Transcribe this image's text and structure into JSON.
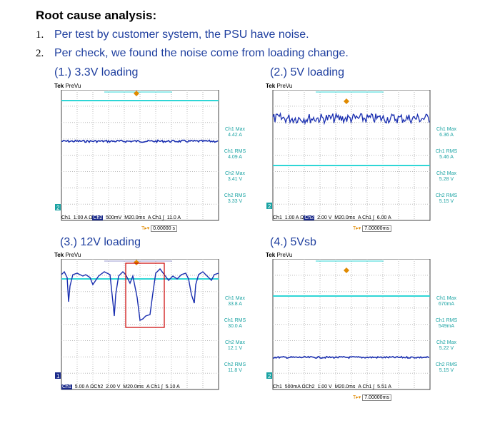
{
  "title": "Root cause analysis:",
  "items": [
    {
      "num": "1.",
      "text": "Per test by customer system, the PSU have noise."
    },
    {
      "num": "2.",
      "text": "Per check, we found the noise come from loading change."
    }
  ],
  "scopes": [
    {
      "label": "(1.)  3.3V loading",
      "header_brand": "Tek",
      "header_mode": "PreVu",
      "readouts": [
        {
          "name": "Ch1 Max",
          "value": "4.42 A"
        },
        {
          "name": "Ch1 RMS",
          "value": "4.09 A"
        },
        {
          "name": "Ch2 Max",
          "value": "3.41 V"
        },
        {
          "name": "Ch2 RMS",
          "value": "3.33 V"
        }
      ],
      "bottom": {
        "ch1": "Ch1",
        "ch1_scale": "1.00 A Ω",
        "ch2": "Ch2",
        "ch2_scale": "500mV",
        "time": "M20.0ms",
        "trig": "A  Ch1  ∫",
        "level": "11.0 A"
      },
      "trigger_time": "0.00000 s",
      "marker": "2"
    },
    {
      "label": "(2.) 5V loading",
      "header_brand": "Tek",
      "header_mode": "PreVu",
      "readouts": [
        {
          "name": "Ch1 Max",
          "value": "6.36 A"
        },
        {
          "name": "Ch1 RMS",
          "value": "5.46 A"
        },
        {
          "name": "Ch2 Max",
          "value": "5.28 V"
        },
        {
          "name": "Ch2 RMS",
          "value": "5.15 V"
        }
      ],
      "bottom": {
        "ch1": "Ch1",
        "ch1_scale": "1.00 A Ω",
        "ch2": "Ch2",
        "ch2_scale": "2.00 V",
        "time": "M20.0ms",
        "trig": "A  Ch1  ∫",
        "level": "6.00 A"
      },
      "trigger_time": "7.00000ms",
      "marker": "2"
    },
    {
      "label": "(3.) 12V loading",
      "header_brand": "Tek",
      "header_mode": "PreVu",
      "readouts": [
        {
          "name": "Ch1 Max",
          "value": "33.8 A"
        },
        {
          "name": "Ch1 RMS",
          "value": "30.0 A"
        },
        {
          "name": "Ch2 Max",
          "value": "12.1 V"
        },
        {
          "name": "Ch2 RMS",
          "value": "11.8 V"
        }
      ],
      "bottom": {
        "ch1": "Ch1",
        "ch1_scale": "5.00 A Ω",
        "ch2": "Ch2",
        "ch2_scale": "2.00 V",
        "time": "M20.0ms",
        "trig": "A  Ch1  ∫",
        "level": "5.10 A"
      },
      "marker": "1"
    },
    {
      "label": "(4.) 5Vsb",
      "header_brand": "Tek",
      "header_mode": "PreVu",
      "readouts": [
        {
          "name": "Ch1 Max",
          "value": "670mA"
        },
        {
          "name": "Ch1 RMS",
          "value": "549mA"
        },
        {
          "name": "Ch2 Max",
          "value": "5.22 V"
        },
        {
          "name": "Ch2 RMS",
          "value": "5.15 V"
        }
      ],
      "bottom": {
        "ch1": "Ch1",
        "ch1_scale": "500mA Ω",
        "ch2": "Ch2",
        "ch2_scale": "1.00 V",
        "time": "M20.0ms",
        "trig": "A  Ch1  ∫",
        "level": "5.51 A"
      },
      "trigger_time": "7.00000ms",
      "marker": "2"
    }
  ],
  "colors": {
    "text_blue": "#1f3f9f",
    "ch1_trace": "#1a2fb0",
    "ch2_trace": "#2fd6d6",
    "highlight_box": "#cc0000"
  }
}
